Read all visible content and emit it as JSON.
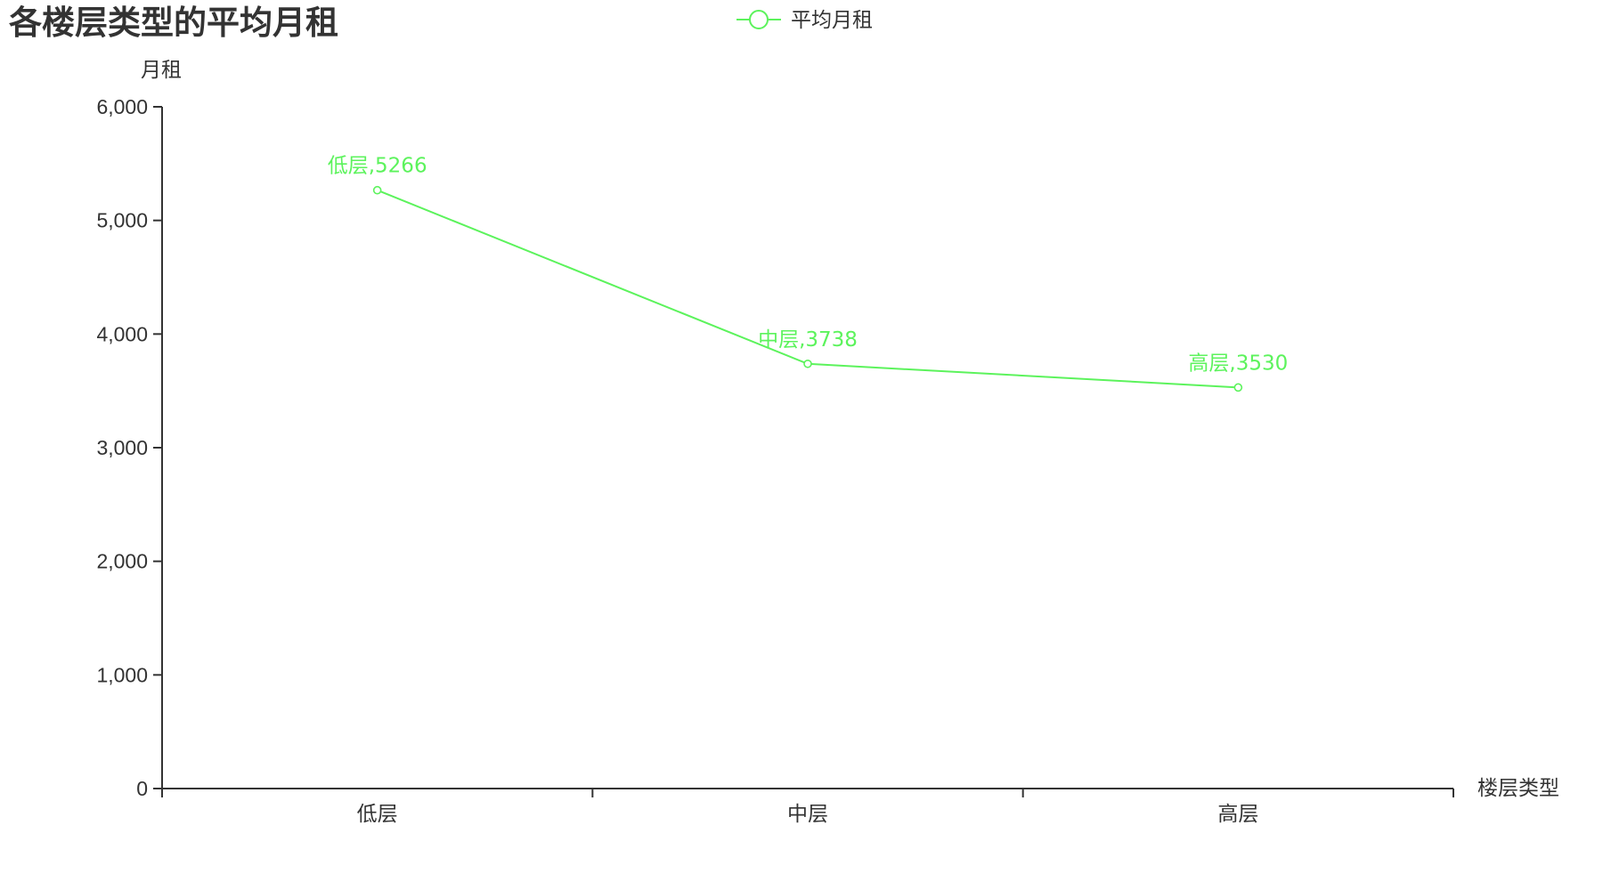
{
  "chart_data": {
    "type": "line",
    "title": "各楼层类型的平均月租",
    "xlabel": "楼层类型",
    "ylabel": "月租",
    "categories": [
      "低层",
      "中层",
      "高层"
    ],
    "series": [
      {
        "name": "平均月租",
        "values": [
          5266,
          3738,
          3530
        ],
        "data_labels": [
          "低层,5266",
          "中层,3738",
          "高层,3530"
        ],
        "color": "#5cf35c"
      }
    ],
    "ylim": [
      0,
      6000
    ],
    "yticks": [
      0,
      1000,
      2000,
      3000,
      4000,
      5000,
      6000
    ],
    "ytick_labels": [
      "0",
      "1,000",
      "2,000",
      "3,000",
      "4,000",
      "5,000",
      "6,000"
    ],
    "grid": false,
    "legend_position": "top-center"
  },
  "colors": {
    "series": "#5cf35c",
    "axis": "#333333",
    "text": "#333333"
  }
}
